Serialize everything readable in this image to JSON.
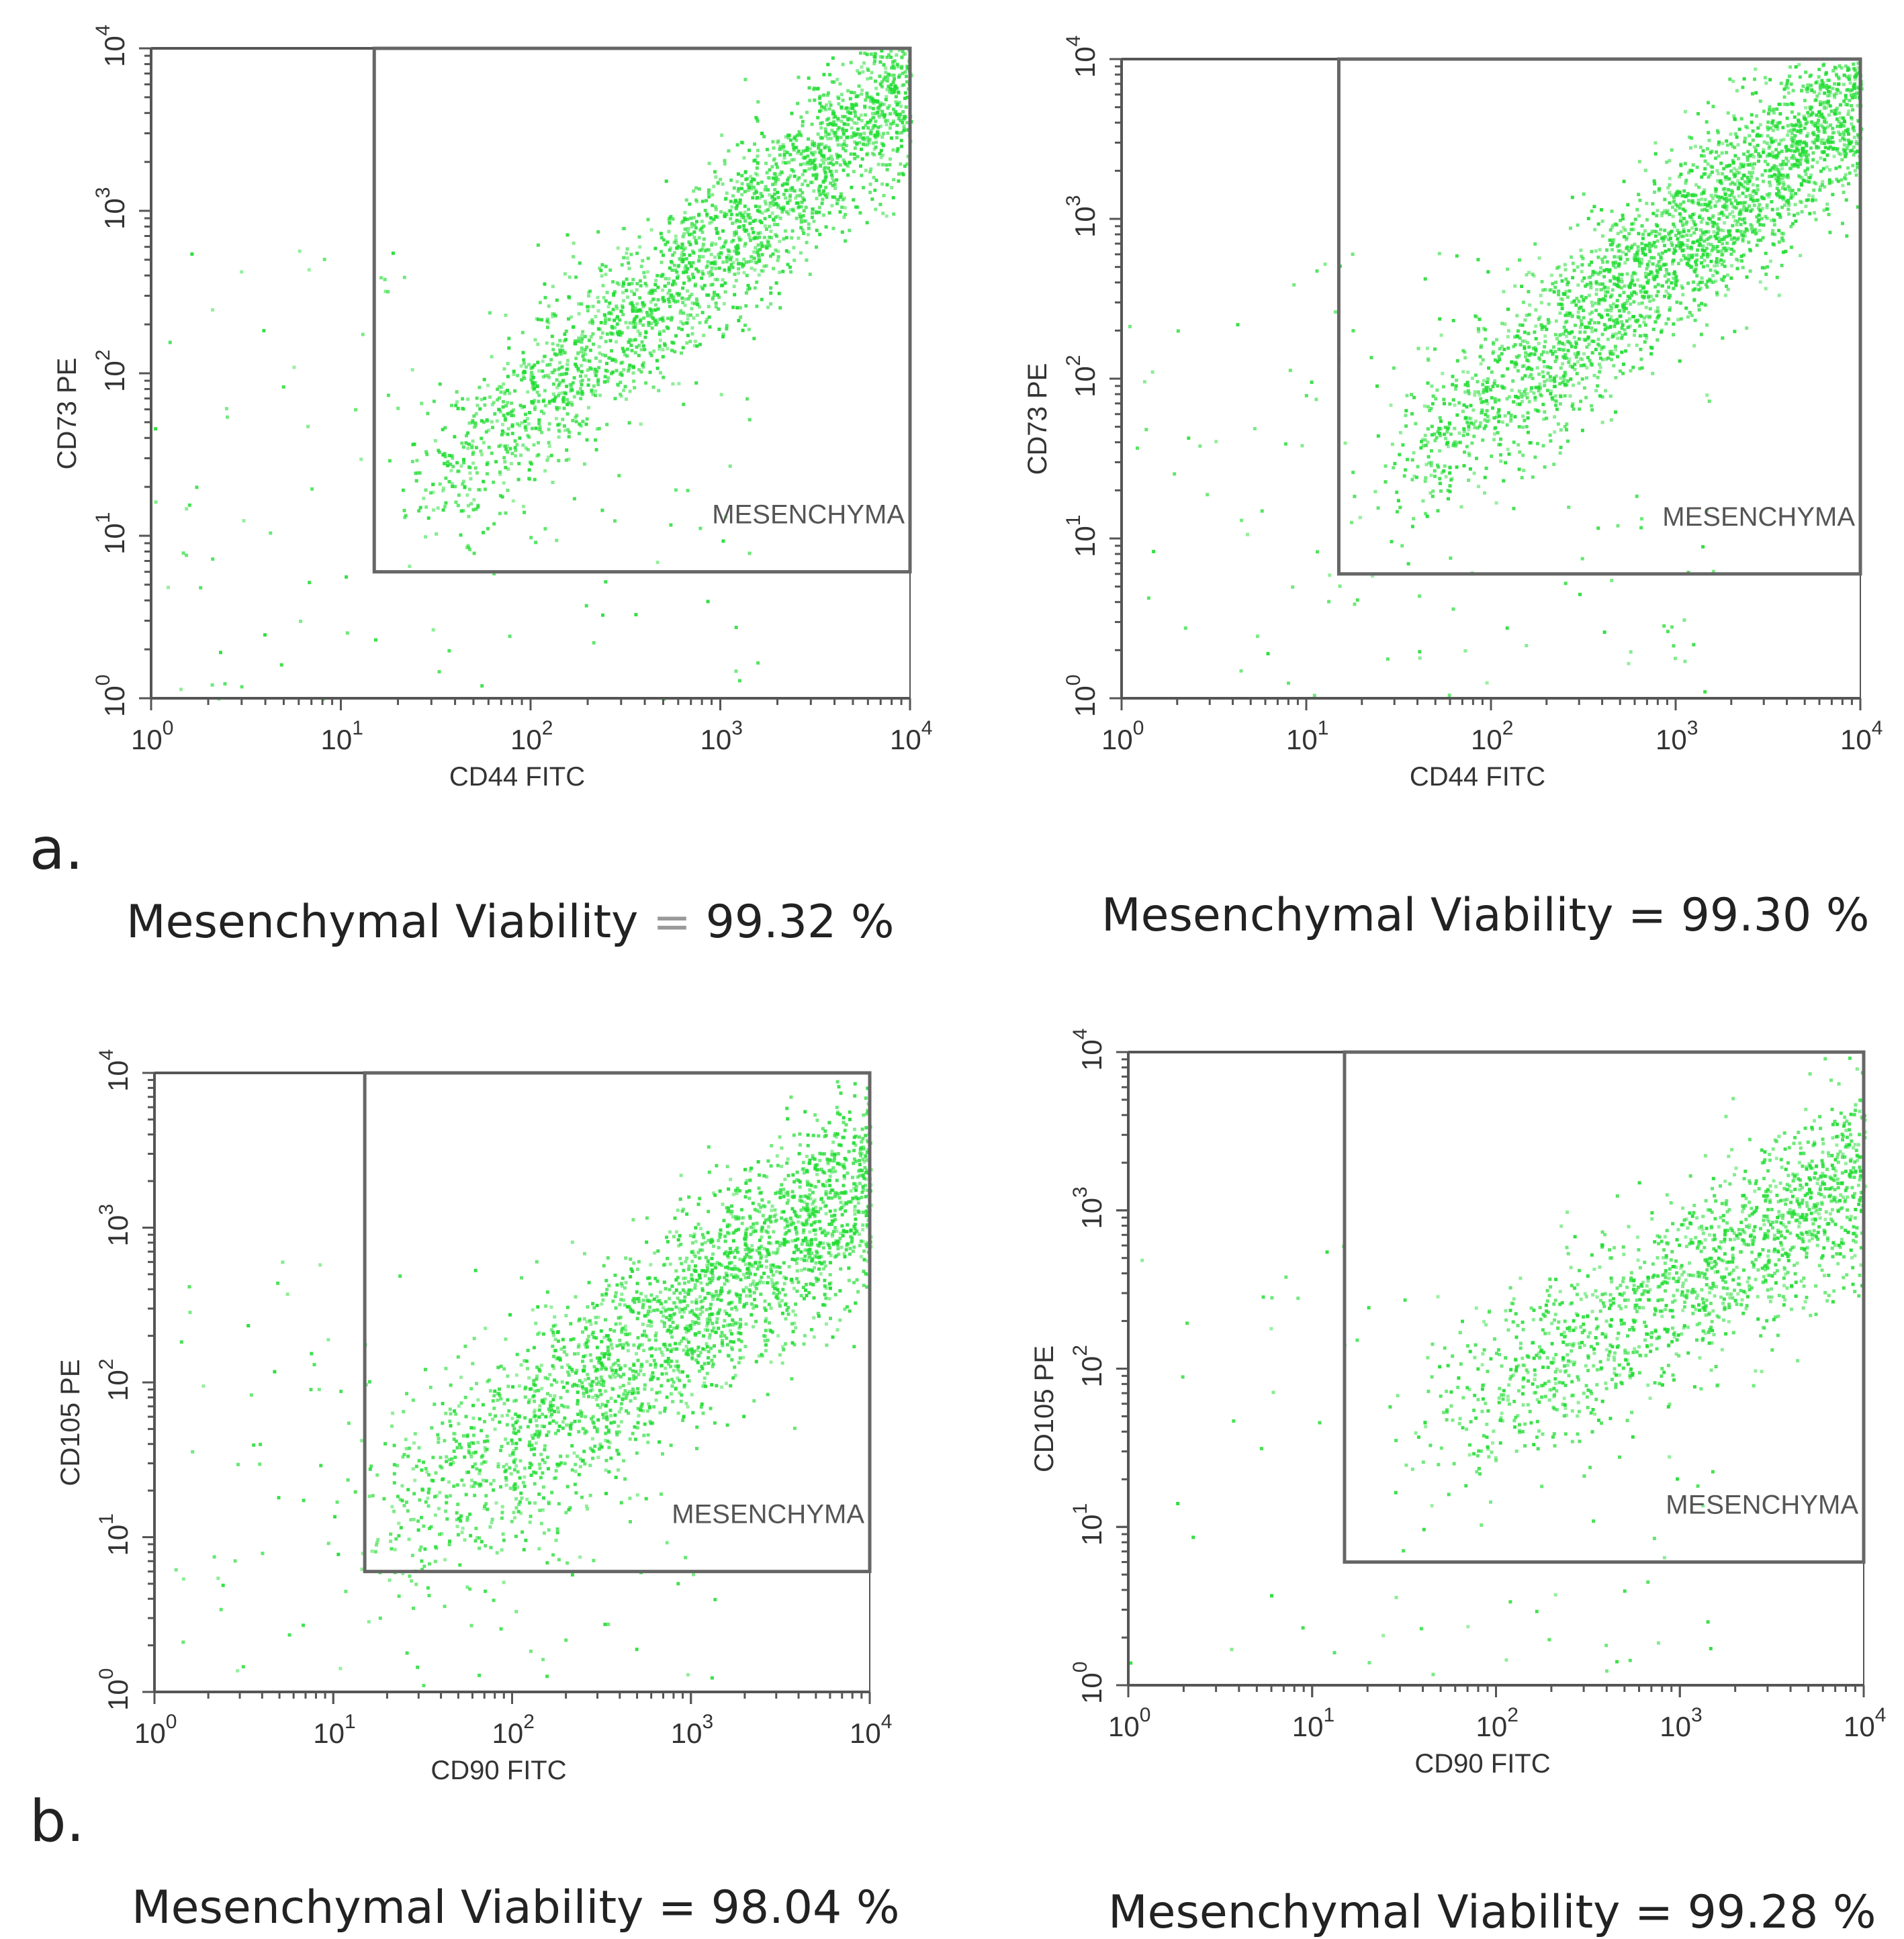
{
  "figure": {
    "labels": {
      "a": "a.",
      "b": "b."
    },
    "colors": {
      "dot": "#22dd33",
      "axis": "#555555",
      "gate": "#666666",
      "text": "#222222"
    }
  },
  "chart_data": [
    {
      "type": "scatter",
      "id": "a-left",
      "xlabel": "CD44 FITC",
      "ylabel": "CD73 PE",
      "xscale": "log",
      "yscale": "log",
      "xlim": [
        1,
        10000
      ],
      "ylim": [
        1,
        10000
      ],
      "x_ticks": [
        {
          "base": "10",
          "exp": "0"
        },
        {
          "base": "10",
          "exp": "1"
        },
        {
          "base": "10",
          "exp": "2"
        },
        {
          "base": "10",
          "exp": "3"
        },
        {
          "base": "10",
          "exp": "4"
        }
      ],
      "y_ticks": [
        {
          "base": "10",
          "exp": "0"
        },
        {
          "base": "10",
          "exp": "1"
        },
        {
          "base": "10",
          "exp": "2"
        },
        {
          "base": "10",
          "exp": "3"
        },
        {
          "base": "10",
          "exp": "4"
        }
      ],
      "gate": {
        "label": "MESENCHYMA",
        "x_min": 15,
        "x_max": 10000,
        "y_min": 6,
        "y_max": 10000
      },
      "population": {
        "center_log": [
          2.6,
          2.4
        ],
        "slope": 1.0,
        "spread_log": 0.22,
        "n_points": 2800,
        "cluster_start_log": 1.4
      },
      "viability_text": "Mesenchymal Viability ",
      "viability_sign": "=",
      "viability_value": " 99.32 %"
    },
    {
      "type": "scatter",
      "id": "a-right",
      "xlabel": "CD44 FITC",
      "ylabel": "CD73 PE",
      "xscale": "log",
      "yscale": "log",
      "xlim": [
        1,
        10000
      ],
      "ylim": [
        1,
        10000
      ],
      "x_ticks": [
        {
          "base": "10",
          "exp": "0"
        },
        {
          "base": "10",
          "exp": "1"
        },
        {
          "base": "10",
          "exp": "2"
        },
        {
          "base": "10",
          "exp": "3"
        },
        {
          "base": "10",
          "exp": "4"
        }
      ],
      "y_ticks": [
        {
          "base": "10",
          "exp": "0"
        },
        {
          "base": "10",
          "exp": "1"
        },
        {
          "base": "10",
          "exp": "2"
        },
        {
          "base": "10",
          "exp": "3"
        },
        {
          "base": "10",
          "exp": "4"
        }
      ],
      "gate": {
        "label": "MESENCHYMA",
        "x_min": 15,
        "x_max": 10000,
        "y_min": 6,
        "y_max": 10000
      },
      "population": {
        "center_log": [
          2.7,
          2.55
        ],
        "slope": 0.95,
        "spread_log": 0.24,
        "n_points": 3200,
        "cluster_start_log": 1.5
      },
      "viability_text": "Mesenchymal Viability ",
      "viability_sign": "=",
      "viability_value": " 99.30 %"
    },
    {
      "type": "scatter",
      "id": "b-left",
      "xlabel": "CD90 FITC",
      "ylabel": "CD105 PE",
      "xscale": "log",
      "yscale": "log",
      "xlim": [
        1,
        10000
      ],
      "ylim": [
        1,
        10000
      ],
      "x_ticks": [
        {
          "base": "10",
          "exp": "0"
        },
        {
          "base": "10",
          "exp": "1"
        },
        {
          "base": "10",
          "exp": "2"
        },
        {
          "base": "10",
          "exp": "3"
        },
        {
          "base": "10",
          "exp": "4"
        }
      ],
      "y_ticks": [
        {
          "base": "10",
          "exp": "0"
        },
        {
          "base": "10",
          "exp": "1"
        },
        {
          "base": "10",
          "exp": "2"
        },
        {
          "base": "10",
          "exp": "3"
        },
        {
          "base": "10",
          "exp": "4"
        }
      ],
      "gate": {
        "label": "MESENCHYMA",
        "x_min": 15,
        "x_max": 10000,
        "y_min": 6,
        "y_max": 10000
      },
      "population": {
        "center_log": [
          2.7,
          2.2
        ],
        "slope": 0.85,
        "spread_log": 0.3,
        "n_points": 3000,
        "cluster_start_log": 1.3
      },
      "viability_text": "Mesenchymal Viability ",
      "viability_sign": "=",
      "viability_value": " 98.04 %"
    },
    {
      "type": "scatter",
      "id": "b-right",
      "xlabel": "CD90 FITC",
      "ylabel": "CD105 PE",
      "xscale": "log",
      "yscale": "log",
      "xlim": [
        1,
        10000
      ],
      "ylim": [
        1,
        10000
      ],
      "x_ticks": [
        {
          "base": "10",
          "exp": "0"
        },
        {
          "base": "10",
          "exp": "1"
        },
        {
          "base": "10",
          "exp": "2"
        },
        {
          "base": "10",
          "exp": "3"
        },
        {
          "base": "10",
          "exp": "4"
        }
      ],
      "y_ticks": [
        {
          "base": "10",
          "exp": "0"
        },
        {
          "base": "10",
          "exp": "1"
        },
        {
          "base": "10",
          "exp": "2"
        },
        {
          "base": "10",
          "exp": "3"
        },
        {
          "base": "10",
          "exp": "4"
        }
      ],
      "gate": {
        "label": "MESENCHYMA",
        "x_min": 15,
        "x_max": 10000,
        "y_min": 6,
        "y_max": 10000
      },
      "population": {
        "center_log": [
          2.9,
          2.45
        ],
        "slope": 0.7,
        "spread_log": 0.28,
        "n_points": 1900,
        "cluster_start_log": 1.7
      },
      "viability_text": "Mesenchymal Viability ",
      "viability_sign": "=",
      "viability_value": " 99.28 %"
    }
  ]
}
